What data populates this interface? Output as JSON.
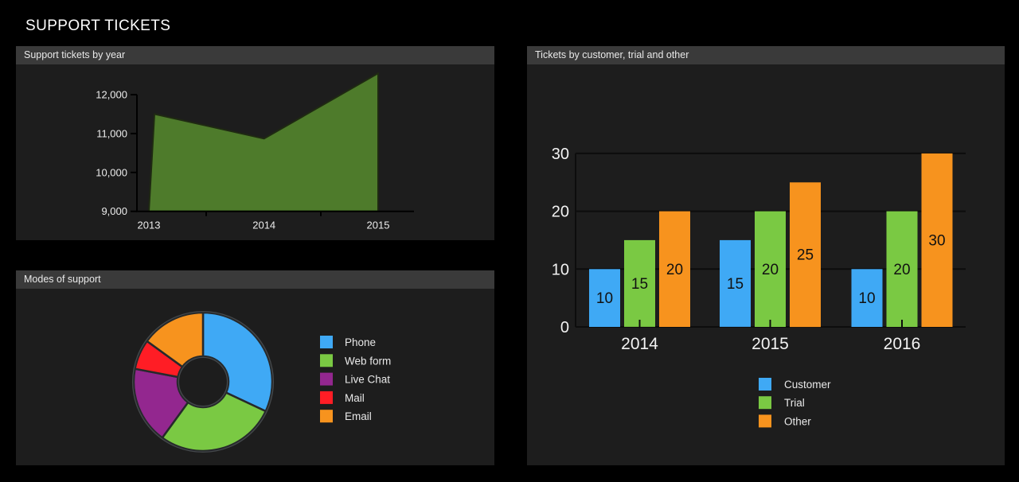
{
  "page": {
    "title": "SUPPORT TICKETS",
    "background": "#000000",
    "panel_background": "#1d1d1d",
    "panel_header_background": "#3a3a3a",
    "text_color": "#ececec"
  },
  "panels": {
    "area": {
      "header": "Support tickets by year"
    },
    "pie": {
      "header": "Modes of support"
    },
    "bar": {
      "header": "Tickets by customer, trial and other"
    }
  },
  "chart_data": [
    {
      "id": "support-by-year",
      "type": "area",
      "title": "Support tickets by year",
      "x": [
        "2013",
        "2014",
        "2015"
      ],
      "values": [
        11500,
        10870,
        12550
      ],
      "ylim": [
        9000,
        12600
      ],
      "yticks": [
        9000,
        10000,
        11000,
        12000
      ],
      "ytick_labels": [
        "9,000",
        "10,000",
        "11,000",
        "12,000"
      ],
      "fill_color": "#4e7b2b",
      "edge_color": "#1f2a12",
      "axis_color": "#000000",
      "grid": false,
      "legend_position": "none"
    },
    {
      "id": "modes-of-support",
      "type": "pie",
      "title": "Modes of support",
      "donut": true,
      "start": "top",
      "direction": "clockwise",
      "labels": [
        "Phone",
        "Web form",
        "Live Chat",
        "Mail",
        "Email"
      ],
      "values": [
        32,
        28,
        18,
        7,
        15
      ],
      "colors": [
        "#3fa9f5",
        "#7ac943",
        "#93278f",
        "#ff1d25",
        "#f7931e"
      ],
      "legend_position": "right"
    },
    {
      "id": "tickets-by-type",
      "type": "bar",
      "title": "Tickets by customer, trial and other",
      "categories": [
        "2014",
        "2015",
        "2016"
      ],
      "series": [
        {
          "name": "Customer",
          "color": "#3fa9f5",
          "values": [
            10,
            15,
            10
          ]
        },
        {
          "name": "Trial",
          "color": "#7ac943",
          "values": [
            15,
            20,
            20
          ]
        },
        {
          "name": "Other",
          "color": "#f7931e",
          "values": [
            20,
            25,
            30
          ]
        }
      ],
      "ylim": [
        0,
        30
      ],
      "yticks": [
        0,
        10,
        20,
        30
      ],
      "grid": true,
      "grid_color": "#0d0d0d",
      "data_labels": true,
      "data_label_color": "#111111",
      "legend_position": "bottom"
    }
  ]
}
